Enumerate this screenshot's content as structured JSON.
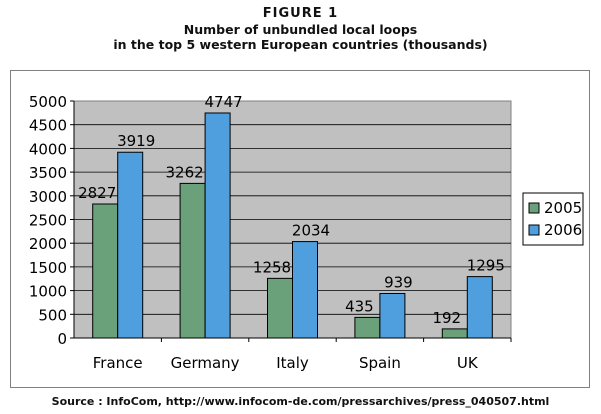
{
  "figure": {
    "label": "FIGURE 1",
    "title_line1": "Number of unbundled local loops",
    "title_line2": "in the top 5 western European countries (thousands)"
  },
  "source": "Source : InfoCom, http://www.infocom-de.com/pressarchives/press_040507.html",
  "chart_data": {
    "type": "bar",
    "categories": [
      "France",
      "Germany",
      "Italy",
      "Spain",
      "UK"
    ],
    "series": [
      {
        "name": "2005",
        "values": [
          2827,
          3262,
          1258,
          435,
          192
        ],
        "color": "#6aa07a"
      },
      {
        "name": "2006",
        "values": [
          3919,
          4747,
          2034,
          939,
          1295
        ],
        "color": "#4f9ede"
      }
    ],
    "yticks": [
      0,
      500,
      1000,
      1500,
      2000,
      2500,
      3000,
      3500,
      4000,
      4500,
      5000
    ],
    "ylim": [
      0,
      5000
    ],
    "plot_background": "#c0c0c0",
    "grid": true,
    "legend_position": "right"
  }
}
